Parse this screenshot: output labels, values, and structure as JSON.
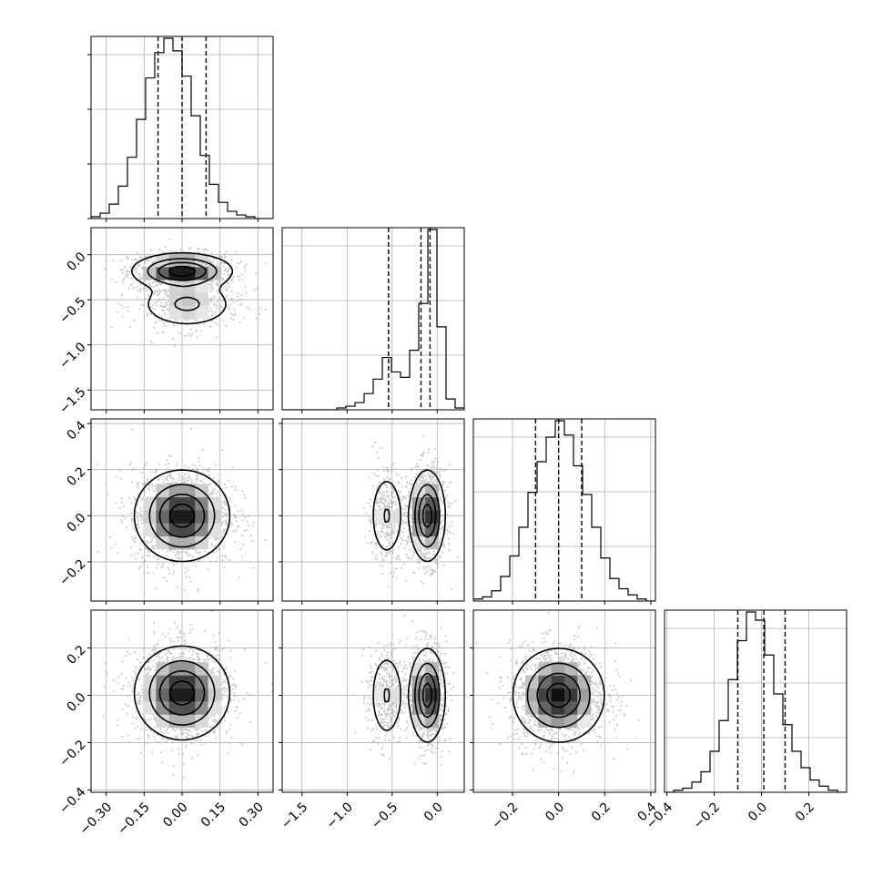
{
  "chart_data": {
    "type": "corner",
    "n_params": 4,
    "ranges": [
      [
        -0.36,
        0.36
      ],
      [
        -1.72,
        0.3
      ],
      [
        -0.37,
        0.42
      ],
      [
        -0.41,
        0.36
      ]
    ],
    "ticks": [
      [
        "-0.30",
        "-0.15",
        "0.00",
        "0.15",
        "0.30"
      ],
      [
        "-1.5",
        "-1.0",
        "-0.5",
        "0.0"
      ],
      [
        "-0.2",
        "0.0",
        "0.2",
        "0.4"
      ],
      [
        "-0.4",
        "-0.2",
        "0.0",
        "0.2"
      ]
    ],
    "quantiles": [
      [
        -0.095,
        0.0,
        0.095
      ],
      [
        -0.54,
        -0.18,
        -0.08
      ],
      [
        -0.1,
        0.0,
        0.1
      ],
      [
        -0.1,
        0.01,
        0.1
      ]
    ],
    "histograms": [
      {
        "bin_start": -0.36,
        "bin_width": 0.036,
        "values": [
          1,
          3,
          8,
          18,
          34,
          55,
          78,
          92,
          100,
          93,
          79,
          57,
          35,
          19,
          9,
          4,
          2,
          1,
          0,
          0
        ]
      },
      {
        "bin_start": -1.72,
        "bin_width": 0.101,
        "values": [
          0,
          0,
          0,
          0,
          0,
          0,
          1,
          2,
          4,
          9,
          17,
          29,
          21,
          18,
          33,
          59,
          100,
          46,
          6,
          1
        ]
      },
      {
        "bin_start": -0.37,
        "bin_width": 0.0395,
        "values": [
          1,
          2,
          5,
          12,
          22,
          36,
          53,
          68,
          80,
          88,
          81,
          66,
          52,
          36,
          21,
          11,
          6,
          3,
          1,
          0
        ]
      },
      {
        "bin_start": -0.41,
        "bin_width": 0.0385,
        "values": [
          0,
          1,
          2,
          5,
          10,
          20,
          35,
          55,
          74,
          88,
          84,
          67,
          48,
          33,
          20,
          12,
          6,
          3,
          1,
          0
        ]
      }
    ],
    "contours": [
      {
        "row": 1,
        "col": 0,
        "modes": [
          {
            "cx": 0.0,
            "cy": -0.18,
            "sx": 0.1,
            "sy": 0.1,
            "w": 1.0
          },
          {
            "cx": 0.02,
            "cy": -0.55,
            "sx": 0.1,
            "sy": 0.14,
            "w": 0.45
          }
        ]
      },
      {
        "row": 2,
        "col": 0,
        "modes": [
          {
            "cx": 0.0,
            "cy": 0.0,
            "sx": 0.095,
            "sy": 0.1,
            "w": 1.0
          }
        ]
      },
      {
        "row": 2,
        "col": 1,
        "modes": [
          {
            "cx": -0.11,
            "cy": 0.0,
            "sx": 0.1,
            "sy": 0.1,
            "w": 1.0
          },
          {
            "cx": -0.56,
            "cy": 0.0,
            "sx": 0.1,
            "sy": 0.1,
            "w": 0.42
          }
        ]
      },
      {
        "row": 3,
        "col": 0,
        "modes": [
          {
            "cx": 0.0,
            "cy": 0.01,
            "sx": 0.095,
            "sy": 0.1,
            "w": 1.0
          }
        ]
      },
      {
        "row": 3,
        "col": 1,
        "modes": [
          {
            "cx": -0.11,
            "cy": 0.0,
            "sx": 0.1,
            "sy": 0.1,
            "w": 1.0
          },
          {
            "cx": -0.56,
            "cy": 0.0,
            "sx": 0.1,
            "sy": 0.1,
            "w": 0.42
          }
        ]
      },
      {
        "row": 3,
        "col": 2,
        "modes": [
          {
            "cx": 0.0,
            "cy": 0.0,
            "sx": 0.1,
            "sy": 0.1,
            "w": 1.0
          }
        ]
      }
    ],
    "grid": true,
    "colors": {
      "line": "#000000",
      "grid": "#b0b0b0",
      "scatter": "#9a9a9a"
    }
  }
}
